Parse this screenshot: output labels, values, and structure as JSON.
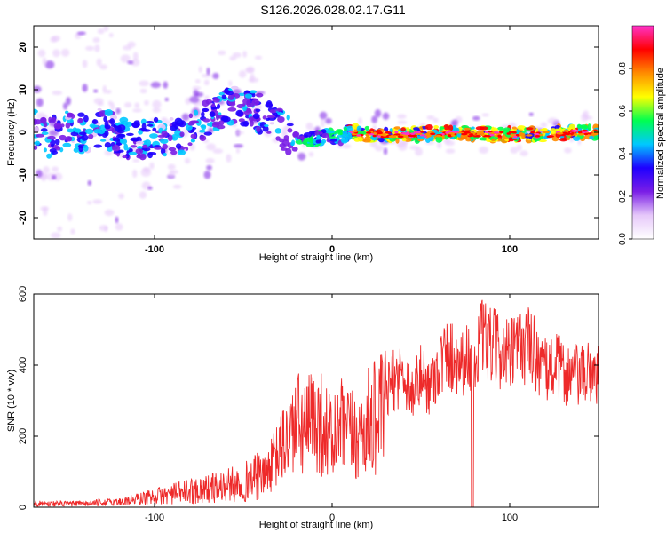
{
  "title": "S126.2026.028.02.17.G11",
  "chart_data": [
    {
      "type": "heatmap",
      "xlabel": "Height of straight line (km)",
      "ylabel": "Frequency (Hz)",
      "xlim": [
        -168,
        150
      ],
      "ylim": [
        -25,
        25
      ],
      "xticks": [
        -100,
        0,
        100
      ],
      "yticks": [
        -20,
        -10,
        0,
        10,
        20
      ],
      "grid": false,
      "ridge": {
        "x": [
          -168,
          -160,
          -150,
          -140,
          -130,
          -120,
          -110,
          -100,
          -90,
          -80,
          -70,
          -60,
          -55,
          -50,
          -45,
          -40,
          -35,
          -30,
          -25,
          -20,
          -15,
          -10,
          -5,
          0,
          5,
          10,
          20,
          40,
          60,
          80,
          100,
          120,
          140,
          150
        ],
        "y": [
          0.5,
          -1.5,
          1.0,
          -0.5,
          1.5,
          -1.0,
          -2.0,
          -1.5,
          -1.0,
          0.0,
          3.0,
          5.5,
          6.5,
          6.0,
          5.5,
          4.0,
          2.5,
          1.0,
          0.0,
          -1.0,
          -2.0,
          -1.5,
          -1.0,
          -0.5,
          -1.0,
          0.0,
          -0.5,
          -0.5,
          -0.3,
          -0.3,
          -0.5,
          -0.5,
          0.0,
          0.0
        ]
      },
      "colorbar": {
        "label": "Normalized spectral amplitude",
        "range": [
          0,
          1
        ],
        "ticks": [
          0.0,
          0.2,
          0.4,
          0.6,
          0.8
        ],
        "tick_labels": [
          "0.0",
          "0.2",
          "0.4",
          "0.6",
          "0.8"
        ],
        "colormap": [
          "#ffffff",
          "#e6c8fa",
          "#7a1ee6",
          "#1e00ff",
          "#00c8ff",
          "#00ff50",
          "#ffff00",
          "#ff8c00",
          "#ff0000",
          "#ff32c8"
        ]
      }
    },
    {
      "type": "line",
      "xlabel": "Height of straight line (km)",
      "ylabel": "SNR (10 * v/v)",
      "xlim": [
        -168,
        150
      ],
      "ylim": [
        0,
        600
      ],
      "xticks": [
        -100,
        0,
        100
      ],
      "yticks": [
        0,
        200,
        400,
        600
      ],
      "grid": false,
      "series": [
        {
          "color": "#ee2a2a",
          "envelope": {
            "x": [
              -168,
              -140,
              -120,
              -100,
              -80,
              -60,
              -50,
              -40,
              -35,
              -30,
              -25,
              -20,
              -15,
              -10,
              -5,
              0,
              5,
              10,
              15,
              20,
              25,
              30,
              35,
              40,
              45,
              50,
              55,
              60,
              65,
              70,
              75,
              78,
              80,
              82,
              85,
              90,
              95,
              100,
              105,
              110,
              115,
              120,
              125,
              130,
              135,
              140,
              145,
              150
            ],
            "y": [
              10,
              10,
              15,
              30,
              45,
              60,
              70,
              90,
              130,
              180,
              230,
              280,
              250,
              300,
              270,
              220,
              260,
              240,
              230,
              280,
              300,
              320,
              360,
              380,
              320,
              370,
              340,
              400,
              430,
              420,
              410,
              430,
              390,
              460,
              470,
              450,
              440,
              420,
              450,
              460,
              430,
              380,
              400,
              380,
              370,
              370,
              380,
              380
            ]
          }
        }
      ]
    }
  ]
}
